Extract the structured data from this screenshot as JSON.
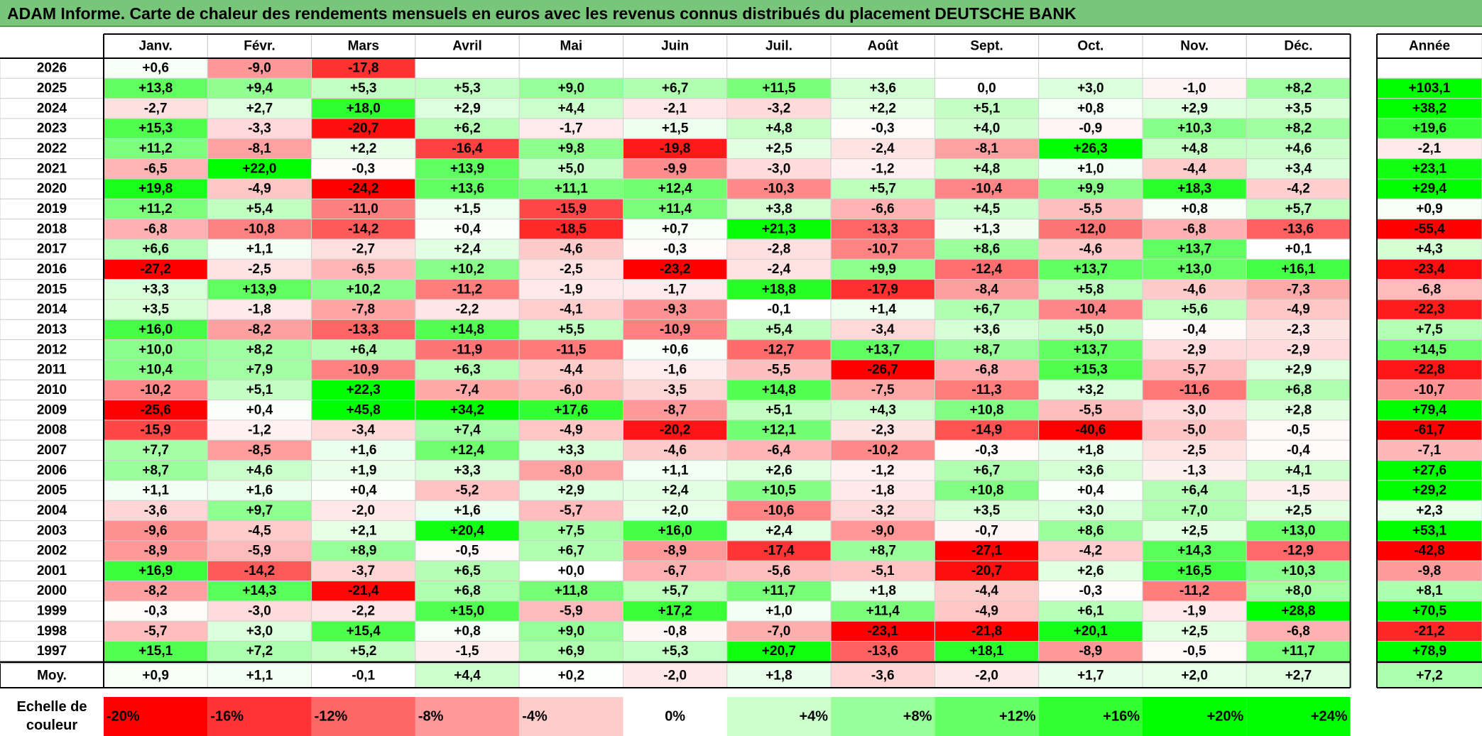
{
  "title": "ADAM Informe. Carte de chaleur des rendements mensuels en euros avec les revenus connus distribués du placement DEUTSCHE BANK",
  "chart_data": {
    "type": "heatmap",
    "months": [
      "Janv.",
      "Févr.",
      "Mars",
      "Avril",
      "Mai",
      "Juin",
      "Juil.",
      "Août",
      "Sept.",
      "Oct.",
      "Nov.",
      "Déc."
    ],
    "year_header": "Année",
    "rows": [
      {
        "year": "2026",
        "values": [
          "+0,6",
          "-9,0",
          "-17,8",
          null,
          null,
          null,
          null,
          null,
          null,
          null,
          null,
          null
        ],
        "annual": null
      },
      {
        "year": "2025",
        "values": [
          "+13,8",
          "+9,4",
          "+5,3",
          "+5,3",
          "+9,0",
          "+6,7",
          "+11,5",
          "+3,6",
          "0,0",
          "+3,0",
          "-1,0",
          "+8,2"
        ],
        "annual": "+103,1"
      },
      {
        "year": "2024",
        "values": [
          "-2,7",
          "+2,7",
          "+18,0",
          "+2,9",
          "+4,4",
          "-2,1",
          "-3,2",
          "+2,2",
          "+5,1",
          "+0,8",
          "+2,9",
          "+3,5"
        ],
        "annual": "+38,2"
      },
      {
        "year": "2023",
        "values": [
          "+15,3",
          "-3,3",
          "-20,7",
          "+6,2",
          "-1,7",
          "+1,5",
          "+4,8",
          "-0,3",
          "+4,0",
          "-0,9",
          "+10,3",
          "+8,2"
        ],
        "annual": "+19,6"
      },
      {
        "year": "2022",
        "values": [
          "+11,2",
          "-8,1",
          "+2,2",
          "-16,4",
          "+9,8",
          "-19,8",
          "+2,5",
          "-2,4",
          "-8,1",
          "+26,3",
          "+4,8",
          "+4,6"
        ],
        "annual": "-2,1"
      },
      {
        "year": "2021",
        "values": [
          "-6,5",
          "+22,0",
          "-0,3",
          "+13,9",
          "+5,0",
          "-9,9",
          "-3,0",
          "-1,2",
          "+4,8",
          "+1,0",
          "-4,4",
          "+3,4"
        ],
        "annual": "+23,1"
      },
      {
        "year": "2020",
        "values": [
          "+19,8",
          "-4,9",
          "-24,2",
          "+13,6",
          "+11,1",
          "+12,4",
          "-10,3",
          "+5,7",
          "-10,4",
          "+9,9",
          "+18,3",
          "-4,2"
        ],
        "annual": "+29,4"
      },
      {
        "year": "2019",
        "values": [
          "+11,2",
          "+5,4",
          "-11,0",
          "+1,5",
          "-15,9",
          "+11,4",
          "+3,8",
          "-6,6",
          "+4,5",
          "-5,5",
          "+0,8",
          "+5,7"
        ],
        "annual": "+0,9"
      },
      {
        "year": "2018",
        "values": [
          "-6,8",
          "-10,8",
          "-14,2",
          "+0,4",
          "-18,5",
          "+0,7",
          "+21,3",
          "-13,3",
          "+1,3",
          "-12,0",
          "-6,8",
          "-13,6"
        ],
        "annual": "-55,4"
      },
      {
        "year": "2017",
        "values": [
          "+6,6",
          "+1,1",
          "-2,7",
          "+2,4",
          "-4,6",
          "-0,3",
          "-2,8",
          "-10,7",
          "+8,6",
          "-4,6",
          "+13,7",
          "+0,1"
        ],
        "annual": "+4,3"
      },
      {
        "year": "2016",
        "values": [
          "-27,2",
          "-2,5",
          "-6,5",
          "+10,2",
          "-2,5",
          "-23,2",
          "-2,4",
          "+9,9",
          "-12,4",
          "+13,7",
          "+13,0",
          "+16,1"
        ],
        "annual": "-23,4"
      },
      {
        "year": "2015",
        "values": [
          "+3,3",
          "+13,9",
          "+10,2",
          "-11,2",
          "-1,9",
          "-1,7",
          "+18,8",
          "-17,9",
          "-8,4",
          "+5,8",
          "-4,6",
          "-7,3"
        ],
        "annual": "-6,8"
      },
      {
        "year": "2014",
        "values": [
          "+3,5",
          "-1,8",
          "-7,8",
          "-2,2",
          "-4,1",
          "-9,3",
          "-0,1",
          "+1,4",
          "+6,7",
          "-10,4",
          "+5,6",
          "-4,9"
        ],
        "annual": "-22,3"
      },
      {
        "year": "2013",
        "values": [
          "+16,0",
          "-8,2",
          "-13,3",
          "+14,8",
          "+5,5",
          "-10,9",
          "+5,4",
          "-3,4",
          "+3,6",
          "+5,0",
          "-0,4",
          "-2,3"
        ],
        "annual": "+7,5"
      },
      {
        "year": "2012",
        "values": [
          "+10,0",
          "+8,2",
          "+6,4",
          "-11,9",
          "-11,5",
          "+0,6",
          "-12,7",
          "+13,7",
          "+8,7",
          "+13,7",
          "-2,9",
          "-2,9"
        ],
        "annual": "+14,5"
      },
      {
        "year": "2011",
        "values": [
          "+10,4",
          "+7,9",
          "-10,9",
          "+6,3",
          "-4,4",
          "-1,6",
          "-5,5",
          "-26,7",
          "-6,8",
          "+15,3",
          "-5,7",
          "+2,9"
        ],
        "annual": "-22,8"
      },
      {
        "year": "2010",
        "values": [
          "-10,2",
          "+5,1",
          "+22,3",
          "-7,4",
          "-6,0",
          "-3,5",
          "+14,8",
          "-7,5",
          "-11,3",
          "+3,2",
          "-11,6",
          "+6,8"
        ],
        "annual": "-10,7"
      },
      {
        "year": "2009",
        "values": [
          "-25,6",
          "+0,4",
          "+45,8",
          "+34,2",
          "+17,6",
          "-8,7",
          "+5,1",
          "+4,3",
          "+10,8",
          "-5,5",
          "-3,0",
          "+2,8"
        ],
        "annual": "+79,4"
      },
      {
        "year": "2008",
        "values": [
          "-15,9",
          "-1,2",
          "-3,4",
          "+7,4",
          "-4,9",
          "-20,2",
          "+12,1",
          "-2,3",
          "-14,9",
          "-40,6",
          "-5,0",
          "-0,5"
        ],
        "annual": "-61,7"
      },
      {
        "year": "2007",
        "values": [
          "+7,7",
          "-8,5",
          "+1,6",
          "+12,4",
          "+3,3",
          "-4,6",
          "-6,4",
          "-10,2",
          "-0,3",
          "+1,8",
          "-2,5",
          "-0,4"
        ],
        "annual": "-7,1"
      },
      {
        "year": "2006",
        "values": [
          "+8,7",
          "+4,6",
          "+1,9",
          "+3,3",
          "-8,0",
          "+1,1",
          "+2,6",
          "-1,2",
          "+6,7",
          "+3,6",
          "-1,3",
          "+4,1"
        ],
        "annual": "+27,6"
      },
      {
        "year": "2005",
        "values": [
          "+1,1",
          "+1,6",
          "+0,4",
          "-5,2",
          "+2,9",
          "+2,4",
          "+10,5",
          "-1,8",
          "+10,8",
          "+0,4",
          "+6,4",
          "-1,5"
        ],
        "annual": "+29,2"
      },
      {
        "year": "2004",
        "values": [
          "-3,6",
          "+9,7",
          "-2,0",
          "+1,6",
          "-5,7",
          "+2,0",
          "-10,6",
          "-3,2",
          "+3,5",
          "+3,0",
          "+7,0",
          "+2,5"
        ],
        "annual": "+2,3"
      },
      {
        "year": "2003",
        "values": [
          "-9,6",
          "-4,5",
          "+2,1",
          "+20,4",
          "+7,5",
          "+16,0",
          "+2,4",
          "-9,0",
          "-0,7",
          "+8,6",
          "+2,5",
          "+13,0"
        ],
        "annual": "+53,1"
      },
      {
        "year": "2002",
        "values": [
          "-8,9",
          "-5,9",
          "+8,9",
          "-0,5",
          "+6,7",
          "-8,9",
          "-17,4",
          "+8,7",
          "-27,1",
          "-4,2",
          "+14,3",
          "-12,9"
        ],
        "annual": "-42,8"
      },
      {
        "year": "2001",
        "values": [
          "+16,9",
          "-14,2",
          "-3,7",
          "+6,5",
          "+0,0",
          "-6,7",
          "-5,6",
          "-5,1",
          "-20,7",
          "+2,6",
          "+16,5",
          "+10,3"
        ],
        "annual": "-9,8"
      },
      {
        "year": "2000",
        "values": [
          "-8,2",
          "+14,3",
          "-21,4",
          "+6,8",
          "+11,8",
          "+5,7",
          "+11,7",
          "+1,8",
          "-4,4",
          "-0,3",
          "-11,2",
          "+8,0"
        ],
        "annual": "+8,1"
      },
      {
        "year": "1999",
        "values": [
          "-0,3",
          "-3,0",
          "-2,2",
          "+15,0",
          "-5,9",
          "+17,2",
          "+1,0",
          "+11,4",
          "-4,9",
          "+6,1",
          "-1,9",
          "+28,8"
        ],
        "annual": "+70,5"
      },
      {
        "year": "1998",
        "values": [
          "-5,7",
          "+3,0",
          "+15,4",
          "+0,8",
          "+9,0",
          "-0,8",
          "-7,0",
          "-23,1",
          "-21,8",
          "+20,1",
          "+2,5",
          "-6,8"
        ],
        "annual": "-21,2"
      },
      {
        "year": "1997",
        "values": [
          "+15,1",
          "+7,2",
          "+5,2",
          "-1,5",
          "+6,9",
          "+5,3",
          "+20,7",
          "-13,6",
          "+18,1",
          "-8,9",
          "-0,5",
          "+11,7"
        ],
        "annual": "+78,9"
      }
    ],
    "average": {
      "label": "Moy.",
      "values": [
        "+0,9",
        "+1,1",
        "-0,1",
        "+4,4",
        "+0,2",
        "-2,0",
        "+1,8",
        "-3,6",
        "-2,0",
        "+1,7",
        "+2,0",
        "+2,7"
      ],
      "annual": "+7,2"
    },
    "color_scale": {
      "label_line1": "Echelle de",
      "label_line2": "couleur",
      "stops": [
        "-20%",
        "-16%",
        "-12%",
        "-8%",
        "-4%",
        "0%",
        "+4%",
        "+8%",
        "+12%",
        "+16%",
        "+20%",
        "+24%"
      ]
    },
    "colors": {
      "negative_max": "#ff0000",
      "neutral": "#ffffff",
      "positive_max": "#00ff00",
      "title_background": "#78c679"
    }
  }
}
